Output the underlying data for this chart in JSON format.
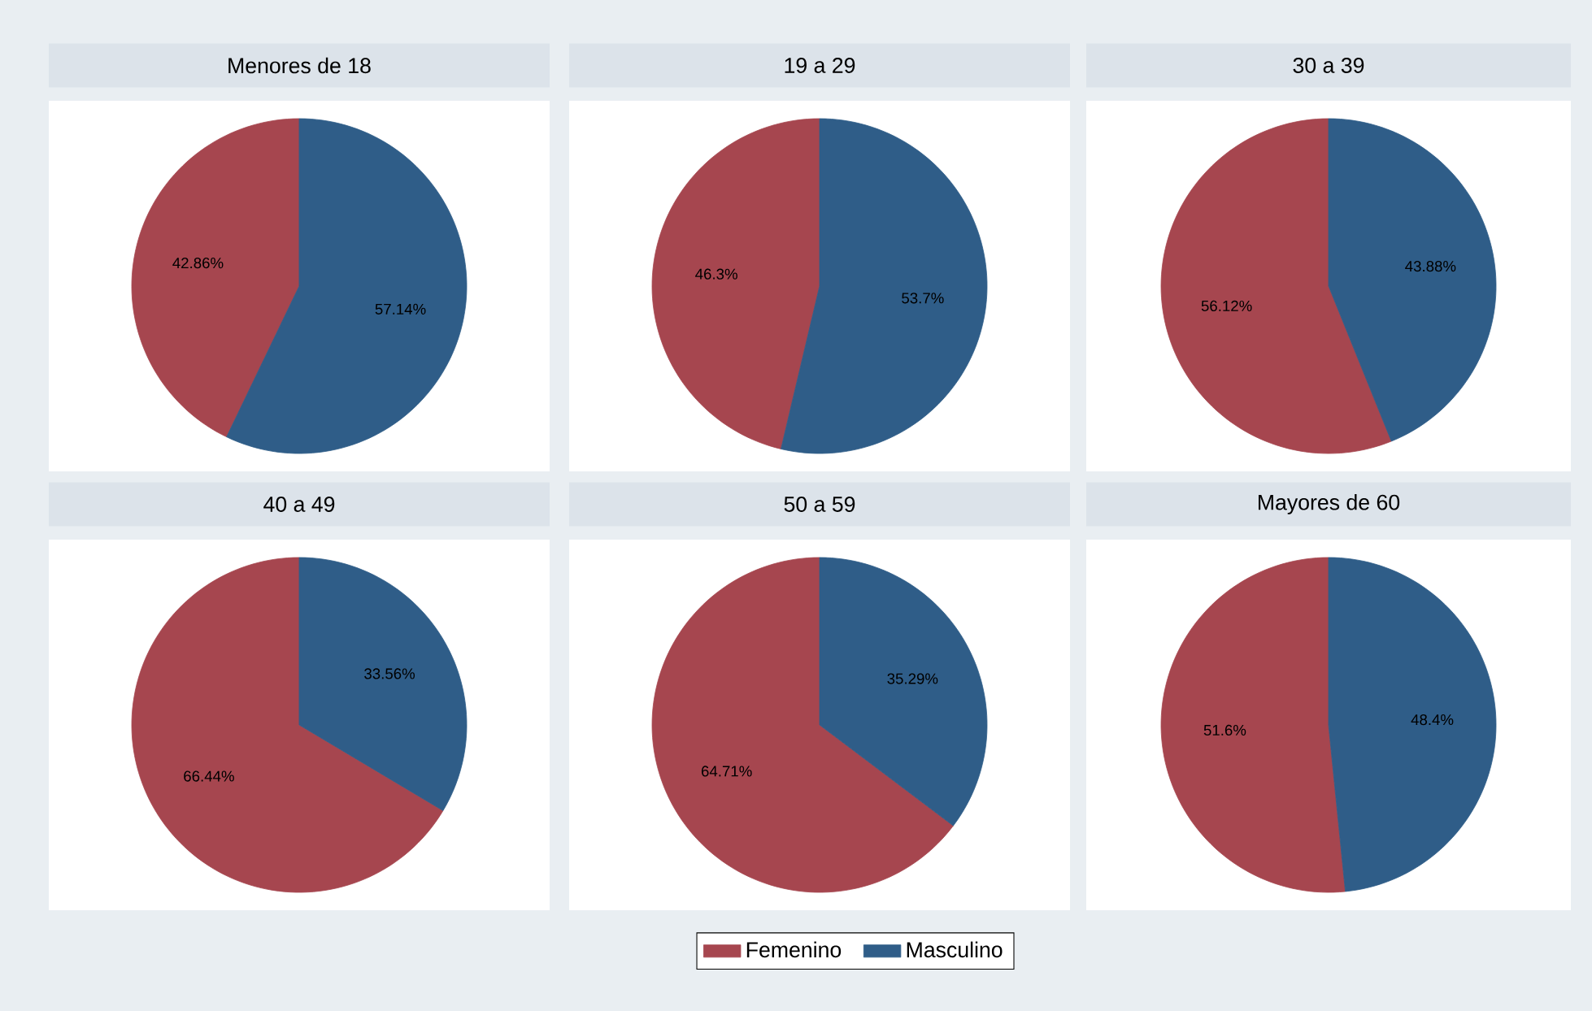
{
  "chart_data": [
    {
      "type": "pie",
      "title": "Menores de 18",
      "categories": [
        null,
        null
      ],
      "values": [
        42.86,
        57.14
      ],
      "value_labels": [
        "42.86%",
        "57.14%"
      ],
      "colors": [
        "#a6464f",
        "#2f5d88"
      ]
    },
    {
      "type": "pie",
      "title": "19 a 29",
      "categories": [
        null,
        null
      ],
      "values": [
        46.3,
        53.7
      ],
      "value_labels": [
        "46.3%",
        "53.7%"
      ],
      "colors": [
        "#a6464f",
        "#2f5d88"
      ]
    },
    {
      "type": "pie",
      "title": "30 a 39",
      "categories": [
        null,
        null
      ],
      "values": [
        56.12,
        43.88
      ],
      "value_labels": [
        "56.12%",
        "43.88%"
      ],
      "colors": [
        "#a6464f",
        "#2f5d88"
      ]
    },
    {
      "type": "pie",
      "title": "40 a 49",
      "categories": [
        null,
        null
      ],
      "values": [
        66.44,
        33.56
      ],
      "value_labels": [
        "66.44%",
        "33.56%"
      ],
      "colors": [
        "#a6464f",
        "#2f5d88"
      ]
    },
    {
      "type": "pie",
      "title": "50 a 59",
      "categories": [
        "Femenino",
        "Masculino"
      ],
      "values": [
        64.71,
        35.29
      ],
      "value_labels": [
        "64.71%",
        "35.29%"
      ],
      "colors": [
        "#a6464f",
        "#2f5d88"
      ],
      "legend": "bottom"
    },
    {
      "type": "pie",
      "title": "Mayores de 60",
      "categories": [
        null,
        null
      ],
      "values": [
        51.6,
        48.4
      ],
      "value_labels": [
        "51.6%",
        "48.4%"
      ],
      "colors": [
        "#a6464f",
        "#2f5d88"
      ]
    }
  ]
}
